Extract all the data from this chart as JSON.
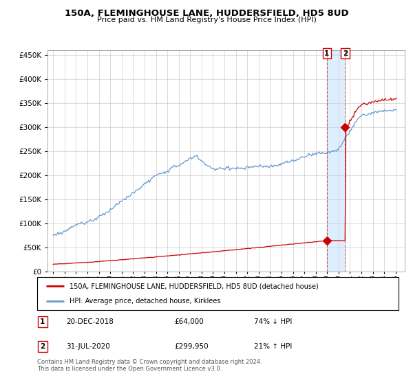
{
  "title": "150A, FLEMINGHOUSE LANE, HUDDERSFIELD, HD5 8UD",
  "subtitle": "Price paid vs. HM Land Registry's House Price Index (HPI)",
  "legend_label_red": "150A, FLEMINGHOUSE LANE, HUDDERSFIELD, HD5 8UD (detached house)",
  "legend_label_blue": "HPI: Average price, detached house, Kirklees",
  "transaction1_date": "20-DEC-2018",
  "transaction1_price": 64000,
  "transaction1_note": "74% ↓ HPI",
  "transaction2_date": "31-JUL-2020",
  "transaction2_price": 299950,
  "transaction2_note": "21% ↑ HPI",
  "footer": "Contains HM Land Registry data © Crown copyright and database right 2024.\nThis data is licensed under the Open Government Licence v3.0.",
  "ylim": [
    0,
    460000
  ],
  "yticks": [
    0,
    50000,
    100000,
    150000,
    200000,
    250000,
    300000,
    350000,
    400000,
    450000
  ],
  "red_color": "#cc0000",
  "blue_color": "#6699cc",
  "bg_color": "#ffffff",
  "grid_color": "#cccccc",
  "shade_color": "#ddeeff",
  "title_color": "#000000",
  "transaction1_x": 2018.97,
  "transaction2_x": 2020.58,
  "xlim_left": 1994.5,
  "xlim_right": 2025.8
}
